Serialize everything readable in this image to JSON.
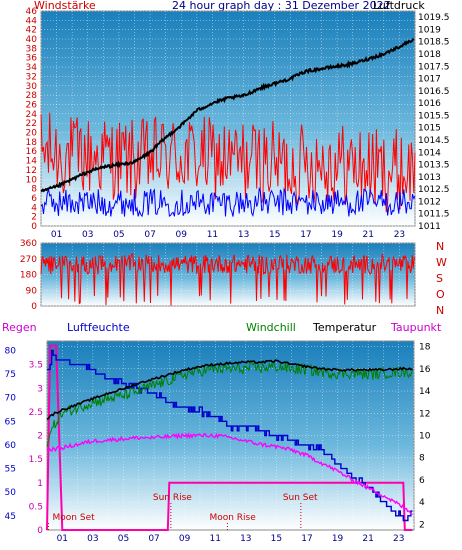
{
  "header": {
    "left": "Windstärke",
    "center": "24 hour graph day : 31 Dezember 2022",
    "right": "Luftdruck"
  },
  "direction_letters": [
    "N",
    "W",
    "S",
    "O",
    "N"
  ],
  "bottom_header": {
    "regen": "Regen",
    "luftfeuchte": "Luftfeuchte",
    "windchill": "Windchill",
    "temperatur": "Temperatur",
    "taupunkt": "Taupunkt"
  },
  "annotations": {
    "moon_set": "Moon Set",
    "sun_rise": "Sun Rise",
    "moon_rise": "Moon Rise",
    "sun_set": "Sun Set"
  },
  "colors": {
    "wind_gust": "#ff0000",
    "wind_avg": "#0000ff",
    "pressure": "#000000",
    "direction": "#ff0000",
    "humidity": "#0000cc",
    "windchill": "#008000",
    "temperature": "#000000",
    "dewpoint": "#ff00ff",
    "rain": "#ff00aa",
    "sky_top": "#1f86bf",
    "sky_bottom": "#ffffff"
  },
  "chart_data": [
    {
      "type": "line",
      "title": "24 hour graph day : 31 Dezember 2022",
      "xlabel": "",
      "x_ticks": [
        "01",
        "03",
        "05",
        "07",
        "09",
        "11",
        "13",
        "15",
        "17",
        "19",
        "21",
        "23"
      ],
      "y_left_label": "Windstärke",
      "y_left_ticks": [
        "0",
        "2",
        "4",
        "6",
        "8",
        "10",
        "12",
        "14",
        "16",
        "18",
        "20",
        "22",
        "24",
        "26",
        "28",
        "30",
        "32",
        "34",
        "36",
        "38",
        "40",
        "42",
        "44",
        "46"
      ],
      "ylim_left": [
        0,
        46
      ],
      "y_right_label": "Luftdruck",
      "y_right_ticks": [
        "1011",
        "1011.5",
        "1012",
        "1012.5",
        "1013",
        "1013.5",
        "1014",
        "1014.5",
        "1015",
        "1015.5",
        "1016",
        "1016.5",
        "1017",
        "1017.5",
        "1018",
        "1018.5",
        "1019",
        "1019.5"
      ],
      "ylim_right": [
        1011,
        1019.75
      ],
      "series": [
        {
          "name": "Windstärke",
          "axis": "left",
          "color": "#ff0000",
          "x": [
            0,
            2,
            4,
            6,
            8,
            10,
            12,
            14,
            16,
            18,
            20,
            22,
            23.5
          ],
          "values": [
            15,
            14,
            14,
            13,
            14,
            14,
            13,
            13,
            12,
            13,
            12,
            11,
            11
          ]
        },
        {
          "axis": "left",
          "color": "#0000ff",
          "x": [
            0,
            2,
            4,
            6,
            8,
            10,
            12,
            14,
            16,
            18,
            20,
            22,
            23.5
          ],
          "values": [
            5,
            5,
            5,
            5,
            5,
            5,
            5,
            5,
            5,
            5,
            5,
            5,
            5
          ]
        },
        {
          "name": "Luftdruck",
          "axis": "right",
          "color": "#000000",
          "x": [
            0,
            1,
            2,
            3,
            4,
            5,
            6,
            7,
            8,
            9,
            10,
            11,
            12,
            13,
            14,
            15,
            16,
            17,
            18,
            19,
            20,
            21,
            22,
            23,
            23.9
          ],
          "values": [
            1012.4,
            1012.6,
            1012.9,
            1013.2,
            1013.4,
            1013.5,
            1013.6,
            1014.0,
            1014.6,
            1015.1,
            1015.7,
            1016.0,
            1016.2,
            1016.3,
            1016.6,
            1016.8,
            1017.0,
            1017.3,
            1017.4,
            1017.5,
            1017.6,
            1017.8,
            1018.0,
            1018.3,
            1018.6
          ]
        }
      ]
    },
    {
      "type": "line",
      "y_left_ticks": [
        "0",
        "90",
        "180",
        "270",
        "360"
      ],
      "ylim": [
        0,
        360
      ],
      "series": [
        {
          "axis": "left",
          "color": "#ff0000",
          "x": [
            0,
            2,
            4,
            6,
            8,
            10,
            12,
            14,
            16,
            18,
            20,
            22,
            23.5
          ],
          "values": [
            230,
            240,
            235,
            245,
            240,
            238,
            242,
            236,
            240,
            238,
            235,
            240,
            238
          ]
        }
      ]
    },
    {
      "type": "line",
      "x_ticks": [
        "01",
        "03",
        "05",
        "07",
        "09",
        "11",
        "13",
        "15",
        "17",
        "19",
        "21",
        "23"
      ],
      "y_left_label": "Luftfeuchte",
      "y_left_ticks": [
        "45",
        "50",
        "55",
        "60",
        "65",
        "70",
        "75",
        "80"
      ],
      "ylim_left": [
        42,
        82
      ],
      "y_rain_label": "Regen",
      "y_rain_ticks": [
        "0",
        "0.5",
        "1",
        "1.5",
        "2",
        "2.5",
        "3",
        "3.5"
      ],
      "ylim_rain": [
        0,
        4
      ],
      "y_right_ticks": [
        "2",
        "4",
        "6",
        "8",
        "10",
        "12",
        "14",
        "16",
        "18"
      ],
      "ylim_right": [
        1.5,
        18.5
      ],
      "series": [
        {
          "name": "Luftfeuchte",
          "axis": "left",
          "color": "#0000cc",
          "x": [
            0,
            0.3,
            0.6,
            1,
            2,
            3,
            4,
            5,
            6,
            7,
            8,
            9,
            10,
            11,
            12,
            13,
            14,
            15,
            16,
            17,
            18,
            19,
            20,
            21,
            22,
            23,
            23.5,
            23.9
          ],
          "values": [
            76,
            79,
            78,
            78,
            77,
            76,
            74,
            73,
            72,
            71,
            69,
            68,
            67,
            66,
            64,
            64,
            63,
            62,
            61,
            60,
            59,
            56,
            53,
            51,
            48,
            45,
            44,
            46
          ]
        },
        {
          "name": "Windchill",
          "axis": "right",
          "color": "#008000",
          "x": [
            0,
            0.5,
            1,
            2,
            3,
            4,
            5,
            6,
            7,
            8,
            9,
            10,
            11,
            12,
            13,
            14,
            15,
            16,
            17,
            18,
            19,
            20,
            21,
            22,
            23,
            23.9
          ],
          "values": [
            9.5,
            11,
            12,
            12.5,
            13,
            13.3,
            13.6,
            14,
            14.5,
            15,
            15.5,
            15.8,
            16,
            16,
            16,
            16.1,
            16.2,
            16,
            15.9,
            15.7,
            15.6,
            15.6,
            15.5,
            15.6,
            15.7,
            15.7
          ]
        },
        {
          "name": "Temperatur",
          "axis": "right",
          "color": "#000000",
          "x": [
            0,
            0.5,
            1,
            2,
            3,
            4,
            5,
            6,
            7,
            8,
            9,
            10,
            11,
            12,
            13,
            14,
            15,
            16,
            17,
            18,
            19,
            20,
            21,
            22,
            23,
            23.9
          ],
          "values": [
            11.5,
            12,
            12.3,
            12.8,
            13.3,
            13.8,
            14.2,
            14.7,
            15.1,
            15.5,
            15.9,
            16.2,
            16.4,
            16.5,
            16.6,
            16.6,
            16.7,
            16.4,
            16.2,
            16,
            15.9,
            15.9,
            15.9,
            15.9,
            16,
            16
          ]
        },
        {
          "name": "Taupunkt",
          "axis": "right",
          "color": "#ff00ff",
          "x": [
            0,
            1,
            2,
            3,
            4,
            5,
            6,
            7,
            8,
            9,
            10,
            11,
            12,
            13,
            14,
            15,
            16,
            17,
            18,
            19,
            20,
            21,
            22,
            23,
            23.9
          ],
          "values": [
            8.7,
            8.9,
            9.2,
            9.5,
            9.6,
            9.7,
            9.8,
            9.8,
            9.9,
            10,
            10,
            10,
            9.8,
            9.5,
            9.2,
            9,
            8.7,
            8.2,
            7.5,
            6.8,
            6,
            5.3,
            4.6,
            3.8,
            3
          ]
        },
        {
          "name": "Regen",
          "axis": "rain",
          "color": "#ff00aa",
          "x": [
            0,
            0.2,
            0.6,
            1,
            7.9,
            8,
            23.3,
            23.4,
            23.9
          ],
          "values": [
            0,
            3.9,
            3.9,
            0,
            0,
            1,
            1,
            0,
            0
          ]
        }
      ],
      "markers": [
        {
          "label": "Moon Set",
          "x": 0.1,
          "color": "#cc0000"
        },
        {
          "label": "Sun Rise",
          "x": 8.1,
          "color": "#cc0000"
        },
        {
          "label": "Moon Rise",
          "x": 11.8,
          "color": "#cc0000"
        },
        {
          "label": "Sun Set",
          "x": 16.6,
          "color": "#cc0000"
        }
      ]
    }
  ]
}
